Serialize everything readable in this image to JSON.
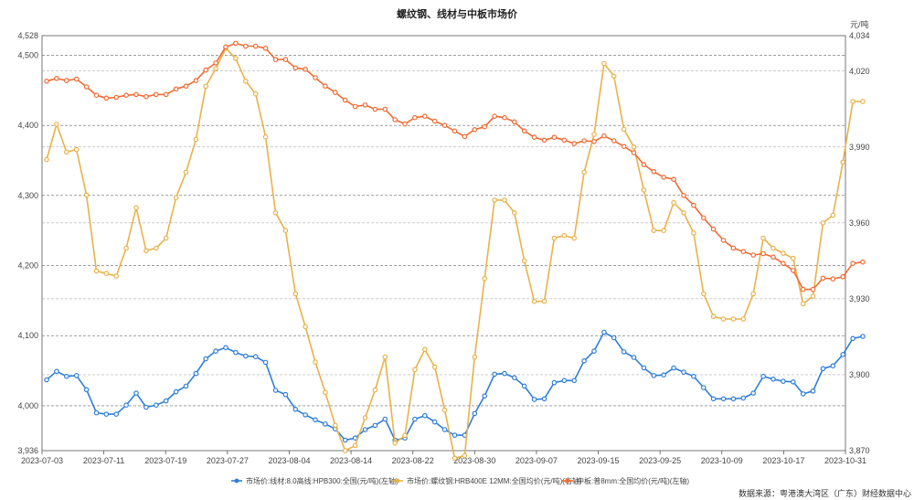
{
  "chart_data": {
    "type": "line",
    "title": "螺纹钢、线材与中板市场价",
    "right_unit": "元/吨",
    "x_ticks": [
      "2023-07-03",
      "2023-07-11",
      "2023-07-19",
      "2023-07-27",
      "2023-08-04",
      "2023-08-14",
      "2023-08-22",
      "2023-08-30",
      "2023-09-07",
      "2023-09-15",
      "2023-09-25",
      "2023-10-09",
      "2023-10-17",
      "2023-10-31"
    ],
    "left_axis": {
      "min": 3936,
      "max": 4528,
      "ticks": [
        "3,936",
        "4,000",
        "4,100",
        "4,200",
        "4,300",
        "4,400",
        "4,500",
        "4,528"
      ]
    },
    "right_axis": {
      "min": 3870,
      "max": 4034,
      "ticks": [
        "3,870",
        "3,900",
        "3,930",
        "3,960",
        "3,990",
        "4,020",
        "4,034"
      ]
    },
    "grid": true,
    "legend_position": "bottom",
    "source": "数据来源：粤港澳大湾区（广东）财经数据中心",
    "series": [
      {
        "name": "市场价:线材:8.0高线:HPB300:全国(元/吨)(左轴)",
        "axis": "left",
        "color": "#2f7ed8",
        "values": [
          4037,
          4049,
          4042,
          4043,
          4023,
          3990,
          3988,
          3988,
          4001,
          4018,
          3998,
          4001,
          4007,
          4020,
          4028,
          4046,
          4067,
          4078,
          4083,
          4076,
          4071,
          4070,
          4062,
          4022,
          4016,
          3995,
          3987,
          3980,
          3974,
          3967,
          3951,
          3954,
          3966,
          3972,
          3981,
          3951,
          3954,
          3981,
          3986,
          3977,
          3966,
          3958,
          3958,
          3989,
          4014,
          4045,
          4046,
          4040,
          4028,
          4009,
          4010,
          4033,
          4036,
          4036,
          4064,
          4078,
          4105,
          4097,
          4077,
          4069,
          4054,
          4043,
          4044,
          4054,
          4048,
          4042,
          4026,
          4010,
          4010,
          4010,
          4011,
          4018,
          4042,
          4038,
          4035,
          4034,
          4017,
          4021,
          4053,
          4057,
          4073,
          4096,
          4099
        ]
      },
      {
        "name": "市场价:螺纹钢:HRB400E 12MM:全国均价(元/吨)(右轴)",
        "axis": "right",
        "color": "#e8b24a",
        "values": [
          3985,
          3999,
          3988,
          3989,
          3971,
          3941,
          3940,
          3939,
          3950,
          3966,
          3949,
          3950,
          3954,
          3970,
          3980,
          3993,
          4014,
          4021,
          4029,
          4025,
          4016,
          4011,
          3994,
          3964,
          3957,
          3932,
          3919,
          3905,
          3893,
          3880,
          3870,
          3872,
          3883,
          3894,
          3907,
          3873,
          3876,
          3902,
          3910,
          3903,
          3886,
          3867,
          3868,
          3907,
          3938,
          3969,
          3969,
          3964,
          3945,
          3929,
          3929,
          3954,
          3955,
          3954,
          3980,
          3995,
          4023,
          4018,
          3997,
          3990,
          3973,
          3957,
          3957,
          3968,
          3964,
          3956,
          3932,
          3923,
          3922,
          3922,
          3922,
          3932,
          3954,
          3950,
          3948,
          3946,
          3928,
          3931,
          3960,
          3963,
          3984,
          4008,
          4008
        ]
      },
      {
        "name": "中板:普8mm:全国均价(元/吨)(左轴)",
        "axis": "left",
        "color": "#f06b33",
        "values": [
          4463,
          4467,
          4464,
          4466,
          4455,
          4443,
          4439,
          4440,
          4443,
          4444,
          4441,
          4444,
          4444,
          4452,
          4456,
          4464,
          4479,
          4489,
          4512,
          4517,
          4513,
          4513,
          4510,
          4494,
          4494,
          4482,
          4480,
          4468,
          4456,
          4447,
          4436,
          4427,
          4429,
          4423,
          4423,
          4408,
          4402,
          4411,
          4413,
          4406,
          4400,
          4392,
          4384,
          4394,
          4398,
          4413,
          4411,
          4405,
          4392,
          4383,
          4379,
          4383,
          4379,
          4374,
          4378,
          4377,
          4385,
          4378,
          4370,
          4361,
          4344,
          4334,
          4326,
          4323,
          4300,
          4286,
          4268,
          4252,
          4236,
          4225,
          4220,
          4215,
          4217,
          4212,
          4203,
          4193,
          4166,
          4166,
          4182,
          4181,
          4184,
          4203,
          4205
        ]
      }
    ]
  }
}
